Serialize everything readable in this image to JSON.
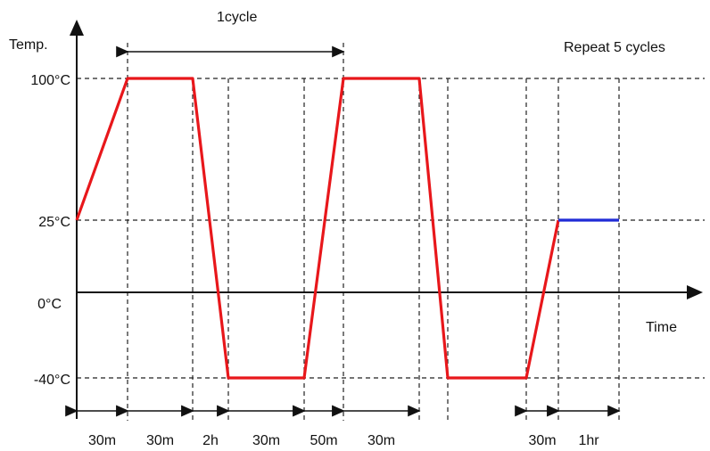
{
  "diagram": {
    "title": "1cycle",
    "note": "Repeat 5 cycles",
    "y_axis_label": "Temp.",
    "x_axis_label": "Time",
    "y_levels": [
      {
        "label": "100°C",
        "value": 100
      },
      {
        "label": "25°C",
        "value": 25
      },
      {
        "label": "0°C",
        "value": 0
      },
      {
        "label": "-40°C",
        "value": -40
      }
    ],
    "profile_points_min": [
      [
        0,
        25
      ],
      [
        30,
        100
      ],
      [
        60,
        100
      ],
      [
        180,
        -40
      ],
      [
        210,
        -40
      ],
      [
        260,
        100
      ],
      [
        290,
        100
      ],
      [
        410,
        -40
      ],
      [
        440,
        -40
      ],
      [
        470,
        25
      ]
    ],
    "hold_segment_min": [
      [
        470,
        25
      ],
      [
        530,
        25
      ]
    ],
    "durations": [
      {
        "label": "30m",
        "start": 0,
        "end": 30
      },
      {
        "label": "30m",
        "start": 30,
        "end": 60
      },
      {
        "label": "2h",
        "start": 60,
        "end": 180
      },
      {
        "label": "30m",
        "start": 180,
        "end": 210
      },
      {
        "label": "50m",
        "start": 210,
        "end": 260
      },
      {
        "label": "30m",
        "start": 260,
        "end": 290
      },
      {
        "label": "30m",
        "start": 440,
        "end": 470
      },
      {
        "label": "1hr",
        "start": 470,
        "end": 530
      }
    ],
    "colors": {
      "profile": "#e8171b",
      "hold": "#1f2bd6",
      "axis": "#111111",
      "guide": "#222222"
    }
  }
}
